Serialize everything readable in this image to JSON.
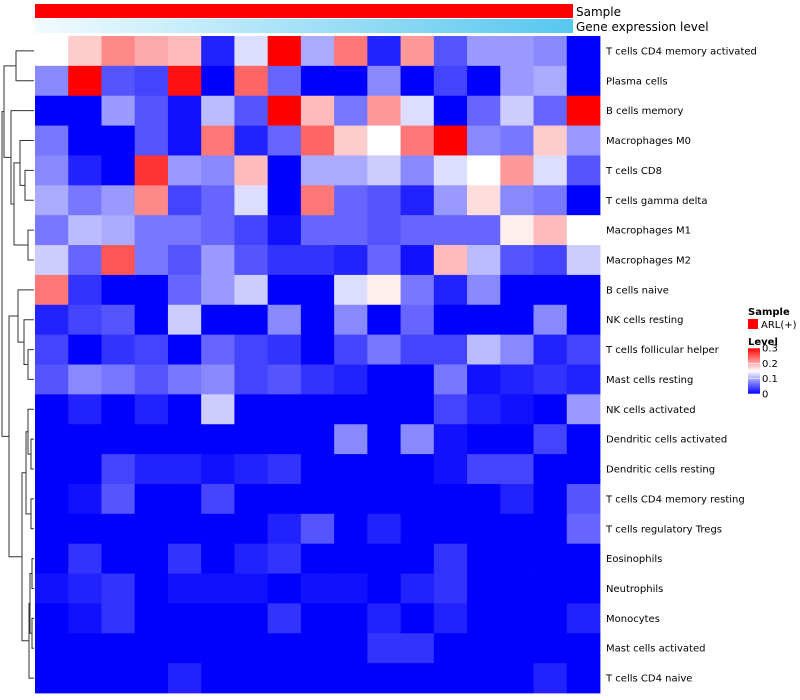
{
  "chart_data": {
    "type": "heatmap",
    "annotations": [
      {
        "label": "Sample",
        "color": "#ff0000"
      },
      {
        "label": "Gene expression level",
        "gradient_low": "#f2fbff",
        "gradient_high": "#56c7ef"
      }
    ],
    "rows": [
      "T cells CD4 memory activated",
      "Plasma cells",
      "B cells memory",
      "Macrophages M0",
      "T cells CD8",
      "T cells gamma delta",
      "Macrophages M1",
      "Macrophages M2",
      "B cells naive",
      "NK cells resting",
      "T cells follicular helper",
      "Mast cells resting",
      "NK cells activated",
      "Dendritic cells activated",
      "Dendritic cells resting",
      "T cells CD4 memory resting",
      "T cells regulatory  Tregs",
      "Eosinophils",
      "Neutrophils",
      "Monocytes",
      "Mast cells activated",
      "T cells CD4 naive"
    ],
    "values": [
      [
        0.15,
        0.18,
        0.22,
        0.2,
        0.19,
        0.02,
        0.13,
        0.3,
        0.1,
        0.23,
        0.02,
        0.21,
        0.05,
        0.09,
        0.09,
        0.08,
        0.0
      ],
      [
        0.08,
        0.3,
        0.05,
        0.04,
        0.29,
        0.0,
        0.24,
        0.06,
        0.0,
        0.0,
        0.08,
        0.0,
        0.04,
        0.0,
        0.09,
        0.1,
        0.0
      ],
      [
        0.0,
        0.0,
        0.09,
        0.05,
        0.01,
        0.11,
        0.05,
        0.3,
        0.19,
        0.07,
        0.21,
        0.13,
        0.0,
        0.06,
        0.12,
        0.06,
        0.3
      ],
      [
        0.07,
        0.0,
        0.0,
        0.05,
        0.01,
        0.23,
        0.02,
        0.06,
        0.24,
        0.18,
        0.15,
        0.23,
        0.3,
        0.08,
        0.07,
        0.18,
        0.09
      ],
      [
        0.08,
        0.02,
        0.0,
        0.27,
        0.09,
        0.08,
        0.19,
        0.0,
        0.1,
        0.1,
        0.12,
        0.08,
        0.13,
        0.15,
        0.21,
        0.13,
        0.05
      ],
      [
        0.1,
        0.07,
        0.09,
        0.22,
        0.04,
        0.06,
        0.13,
        0.0,
        0.23,
        0.06,
        0.05,
        0.02,
        0.09,
        0.17,
        0.08,
        0.07,
        0.0
      ],
      [
        0.07,
        0.11,
        0.1,
        0.07,
        0.07,
        0.06,
        0.04,
        0.01,
        0.06,
        0.06,
        0.05,
        0.06,
        0.06,
        0.06,
        0.16,
        0.19,
        0.15
      ],
      [
        0.12,
        0.06,
        0.25,
        0.07,
        0.05,
        0.09,
        0.05,
        0.03,
        0.03,
        0.02,
        0.06,
        0.01,
        0.19,
        0.11,
        0.05,
        0.04,
        0.12
      ],
      [
        0.23,
        0.03,
        0.0,
        0.0,
        0.06,
        0.09,
        0.12,
        0.0,
        0.0,
        0.13,
        0.16,
        0.07,
        0.02,
        0.08,
        0.0,
        0.0,
        0.0
      ],
      [
        0.02,
        0.04,
        0.05,
        0.0,
        0.12,
        0.0,
        0.0,
        0.08,
        0.0,
        0.08,
        0.0,
        0.06,
        0.0,
        0.0,
        0.0,
        0.08,
        0.0
      ],
      [
        0.04,
        0.0,
        0.03,
        0.04,
        0.0,
        0.06,
        0.04,
        0.03,
        0.0,
        0.04,
        0.07,
        0.04,
        0.04,
        0.11,
        0.08,
        0.02,
        0.04
      ],
      [
        0.05,
        0.08,
        0.07,
        0.05,
        0.07,
        0.08,
        0.04,
        0.05,
        0.03,
        0.02,
        0.0,
        0.0,
        0.07,
        0.01,
        0.02,
        0.03,
        0.02
      ],
      [
        0.0,
        0.02,
        0.0,
        0.02,
        0.0,
        0.12,
        0.0,
        0.0,
        0.0,
        0.0,
        0.0,
        0.0,
        0.04,
        0.02,
        0.01,
        0.0,
        0.09
      ],
      [
        0.0,
        0.0,
        0.0,
        0.0,
        0.0,
        0.0,
        0.0,
        0.0,
        0.0,
        0.08,
        0.0,
        0.08,
        0.01,
        0.0,
        0.0,
        0.04,
        0.0
      ],
      [
        0.0,
        0.0,
        0.04,
        0.02,
        0.02,
        0.01,
        0.02,
        0.03,
        0.0,
        0.0,
        0.0,
        0.0,
        0.01,
        0.04,
        0.04,
        0.0,
        0.0
      ],
      [
        0.0,
        0.01,
        0.05,
        0.0,
        0.0,
        0.04,
        0.0,
        0.0,
        0.0,
        0.0,
        0.0,
        0.0,
        0.0,
        0.0,
        0.02,
        0.0,
        0.05
      ],
      [
        0.0,
        0.0,
        0.0,
        0.0,
        0.0,
        0.0,
        0.0,
        0.02,
        0.05,
        0.0,
        0.02,
        0.0,
        0.0,
        0.0,
        0.0,
        0.0,
        0.06
      ],
      [
        0.0,
        0.03,
        0.0,
        0.0,
        0.03,
        0.0,
        0.02,
        0.03,
        0.0,
        0.0,
        0.0,
        0.0,
        0.03,
        0.0,
        0.0,
        0.0,
        0.0
      ],
      [
        0.01,
        0.02,
        0.03,
        0.0,
        0.01,
        0.01,
        0.01,
        0.0,
        0.01,
        0.01,
        0.0,
        0.02,
        0.03,
        0.0,
        0.0,
        0.0,
        0.0
      ],
      [
        0.0,
        0.01,
        0.03,
        0.0,
        0.0,
        0.0,
        0.0,
        0.03,
        0.0,
        0.0,
        0.02,
        0.0,
        0.02,
        0.0,
        0.0,
        0.0,
        0.02
      ],
      [
        0.0,
        0.0,
        0.0,
        0.0,
        0.0,
        0.0,
        0.0,
        0.0,
        0.0,
        0.0,
        0.03,
        0.03,
        0.0,
        0.0,
        0.0,
        0.0,
        0.0
      ],
      [
        0.0,
        0.0,
        0.0,
        0.0,
        0.02,
        0.0,
        0.0,
        0.0,
        0.0,
        0.0,
        0.0,
        0.0,
        0.0,
        0.0,
        0.0,
        0.02,
        0.0
      ]
    ],
    "color_scale": {
      "min": 0,
      "max": 0.3,
      "low": "#0000ff",
      "mid": "#ffffff",
      "high": "#ff0000",
      "mid_value": 0.15
    },
    "legend": {
      "sample_title": "Sample",
      "sample_entry": "ARL(+)",
      "sample_color": "#ff0000",
      "level_title": "Level",
      "level_ticks": [
        0.3,
        0.2,
        0.1,
        0
      ]
    },
    "row_dendrogram": true,
    "legend_position": "right"
  }
}
